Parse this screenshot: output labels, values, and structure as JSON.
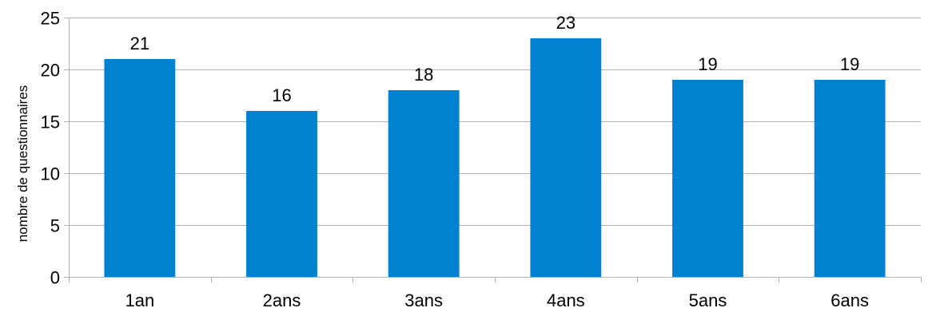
{
  "chart_data": {
    "type": "bar",
    "categories": [
      "1an",
      "2ans",
      "3ans",
      "4ans",
      "5ans",
      "6ans"
    ],
    "values": [
      21,
      16,
      18,
      23,
      19,
      19
    ],
    "data_labels": [
      "21",
      "16",
      "18",
      "23",
      "19",
      "19"
    ],
    "title": "",
    "xlabel": "",
    "ylabel": "nombre de questionnaires",
    "ylim": [
      0,
      25
    ],
    "yticks": [
      0,
      5,
      10,
      15,
      20,
      25
    ],
    "ytick_labels": [
      "0",
      "5",
      "10",
      "15",
      "20",
      "25"
    ],
    "grid": true,
    "legend": "none",
    "bar_color": "#0082D0",
    "grid_color": "#B3B3B3"
  }
}
